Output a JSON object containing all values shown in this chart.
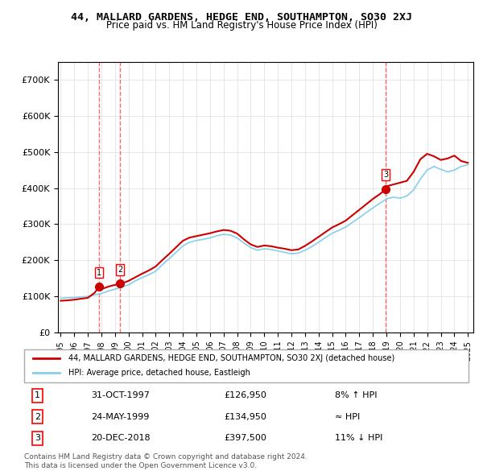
{
  "title": "44, MALLARD GARDENS, HEDGE END, SOUTHAMPTON, SO30 2XJ",
  "subtitle": "Price paid vs. HM Land Registry's House Price Index (HPI)",
  "footer": "Contains HM Land Registry data © Crown copyright and database right 2024.\nThis data is licensed under the Open Government Licence v3.0.",
  "legend_line1": "44, MALLARD GARDENS, HEDGE END, SOUTHAMPTON, SO30 2XJ (detached house)",
  "legend_line2": "HPI: Average price, detached house, Eastleigh",
  "transactions": [
    {
      "num": 1,
      "date": "31-OCT-1997",
      "price": 126950,
      "hpi_text": "8% ↑ HPI",
      "year": 1997.83
    },
    {
      "num": 2,
      "date": "24-MAY-1999",
      "price": 134950,
      "hpi_text": "≈ HPI",
      "year": 1999.39
    },
    {
      "num": 3,
      "date": "20-DEC-2018",
      "price": 397500,
      "hpi_text": "11% ↓ HPI",
      "year": 2018.96
    }
  ],
  "hpi_color": "#87CEEB",
  "price_color": "#CC0000",
  "dashed_color": "#FF4444",
  "background_color": "#FFFFFF",
  "grid_color": "#DDDDDD",
  "ylim": [
    0,
    750000
  ],
  "yticks": [
    0,
    100000,
    200000,
    300000,
    400000,
    500000,
    600000,
    700000
  ],
  "hpi_data_years": [
    1995,
    1995.5,
    1996,
    1996.5,
    1997,
    1997.5,
    1998,
    1998.5,
    1999,
    1999.5,
    2000,
    2000.5,
    2001,
    2001.5,
    2002,
    2002.5,
    2003,
    2003.5,
    2004,
    2004.5,
    2005,
    2005.5,
    2006,
    2006.5,
    2007,
    2007.5,
    2008,
    2008.5,
    2009,
    2009.5,
    2010,
    2010.5,
    2011,
    2011.5,
    2012,
    2012.5,
    2013,
    2013.5,
    2014,
    2014.5,
    2015,
    2015.5,
    2016,
    2016.5,
    2017,
    2017.5,
    2018,
    2018.5,
    2019,
    2019.5,
    2020,
    2020.5,
    2021,
    2021.5,
    2022,
    2022.5,
    2023,
    2023.5,
    2024,
    2024.5,
    2025
  ],
  "hpi_values": [
    95000,
    96000,
    97000,
    98500,
    100000,
    104000,
    108000,
    115000,
    120000,
    126000,
    132000,
    143000,
    152000,
    160000,
    170000,
    188000,
    205000,
    222000,
    240000,
    250000,
    255000,
    258000,
    262000,
    268000,
    272000,
    270000,
    262000,
    248000,
    235000,
    228000,
    232000,
    230000,
    226000,
    222000,
    218000,
    220000,
    228000,
    238000,
    250000,
    263000,
    275000,
    283000,
    292000,
    305000,
    318000,
    332000,
    345000,
    358000,
    370000,
    375000,
    372000,
    378000,
    395000,
    425000,
    450000,
    460000,
    452000,
    445000,
    450000,
    460000,
    465000
  ],
  "price_line_years": [
    1995,
    1995.5,
    1996,
    1996.5,
    1997,
    1997.5,
    1997.83,
    1998,
    1998.5,
    1999,
    1999.39,
    1999.5,
    2000,
    2000.5,
    2001,
    2001.5,
    2002,
    2002.5,
    2003,
    2003.5,
    2004,
    2004.5,
    2005,
    2005.5,
    2006,
    2006.5,
    2007,
    2007.5,
    2008,
    2008.5,
    2009,
    2009.5,
    2010,
    2010.5,
    2011,
    2011.5,
    2012,
    2012.5,
    2013,
    2013.5,
    2014,
    2014.5,
    2015,
    2015.5,
    2016,
    2016.5,
    2017,
    2017.5,
    2018,
    2018.5,
    2018.96,
    2019,
    2019.5,
    2020,
    2020.5,
    2021,
    2021.5,
    2022,
    2022.5,
    2023,
    2023.5,
    2024,
    2024.5,
    2025
  ],
  "price_line_values": [
    88000,
    89000,
    91000,
    93500,
    96000,
    110000,
    126950,
    120000,
    127000,
    132000,
    134950,
    136000,
    143000,
    153000,
    163000,
    172000,
    183000,
    201000,
    218000,
    236000,
    254000,
    263000,
    267000,
    271000,
    275000,
    280000,
    284000,
    282000,
    274000,
    258000,
    244000,
    237000,
    241000,
    239000,
    235000,
    232000,
    228000,
    230000,
    240000,
    252000,
    265000,
    278000,
    291000,
    300000,
    310000,
    325000,
    340000,
    355000,
    370000,
    383000,
    397500,
    405000,
    410000,
    415000,
    420000,
    445000,
    480000,
    495000,
    488000,
    478000,
    482000,
    490000,
    475000,
    470000
  ],
  "xtick_years": [
    "1995",
    "1996",
    "1997",
    "1998",
    "1999",
    "2000",
    "2001",
    "2002",
    "2003",
    "2004",
    "2005",
    "2006",
    "2007",
    "2008",
    "2009",
    "2010",
    "2011",
    "2012",
    "2013",
    "2014",
    "2015",
    "2016",
    "2017",
    "2018",
    "2019",
    "2020",
    "2021",
    "2022",
    "2023",
    "2024",
    "2025"
  ]
}
